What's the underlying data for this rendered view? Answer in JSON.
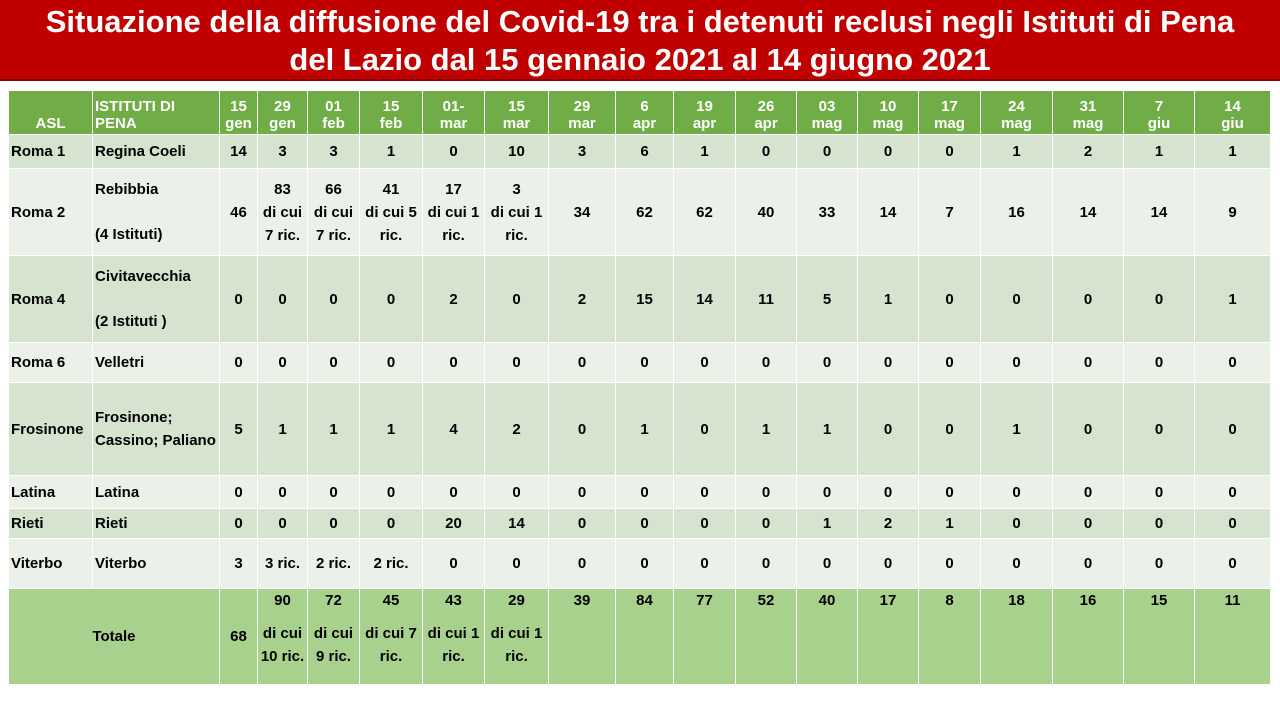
{
  "title": {
    "line1": "Situazione della diffusione del Covid-19 tra i detenuti reclusi negli Istituti di Pena",
    "line2": "del Lazio dal 15 gennaio 2021 al 14 giugno 2021"
  },
  "table": {
    "header": {
      "asl": "ASL",
      "istituti": "ISTITUTI DI PENA",
      "dates": [
        {
          "d": "15",
          "m": "gen"
        },
        {
          "d": "29",
          "m": "gen"
        },
        {
          "d": "01",
          "m": "feb"
        },
        {
          "d": "15",
          "m": "feb"
        },
        {
          "d": "01-",
          "m": "mar"
        },
        {
          "d": "15",
          "m": "mar"
        },
        {
          "d": "29",
          "m": "mar"
        },
        {
          "d": "6",
          "m": "apr"
        },
        {
          "d": "19",
          "m": "apr"
        },
        {
          "d": "26",
          "m": "apr"
        },
        {
          "d": "03",
          "m": "mag"
        },
        {
          "d": "10",
          "m": "mag"
        },
        {
          "d": "17",
          "m": "mag"
        },
        {
          "d": "24",
          "m": "mag"
        },
        {
          "d": "31",
          "m": "mag"
        },
        {
          "d": "7",
          "m": "giu"
        },
        {
          "d": "14",
          "m": "giu"
        }
      ]
    },
    "rows": [
      {
        "asl": "Roma 1",
        "istituto": "Regina Coeli",
        "sub": "",
        "values": [
          "14",
          "3",
          "3",
          "1",
          "0",
          "10",
          "3",
          "6",
          "1",
          "0",
          "0",
          "0",
          "0",
          "1",
          "2",
          "1",
          "1"
        ],
        "notes": [
          "",
          "",
          "",
          "",
          "",
          "",
          "",
          "",
          "",
          "",
          "",
          "",
          "",
          "",
          "",
          "",
          ""
        ]
      },
      {
        "asl": "Roma 2",
        "istituto": "Rebibbia",
        "sub": "(4 Istituti)",
        "values": [
          "46",
          "83",
          "66",
          "41",
          "17",
          "3",
          "34",
          "62",
          "62",
          "40",
          "33",
          "14",
          "7",
          "16",
          "14",
          "14",
          "9"
        ],
        "notes": [
          "",
          "di cui 7 ric.",
          "di cui 7 ric.",
          "di cui 5 ric.",
          "di cui 1 ric.",
          "di cui 1 ric.",
          "",
          "",
          "",
          "",
          "",
          "",
          "",
          "",
          "",
          "",
          ""
        ]
      },
      {
        "asl": "Roma 4",
        "istituto": "Civitavecchia",
        "sub": "(2 Istituti )",
        "values": [
          "0",
          "0",
          "0",
          "0",
          "2",
          "0",
          "2",
          "15",
          "14",
          "11",
          "5",
          "1",
          "0",
          "0",
          "0",
          "0",
          "1"
        ],
        "notes": [
          "",
          "",
          "",
          "",
          "",
          "",
          "",
          "",
          "",
          "",
          "",
          "",
          "",
          "",
          "",
          "",
          ""
        ]
      },
      {
        "asl": "Roma 6",
        "istituto": "Velletri",
        "sub": "",
        "values": [
          "0",
          "0",
          "0",
          "0",
          "0",
          "0",
          "0",
          "0",
          "0",
          "0",
          "0",
          "0",
          "0",
          "0",
          "0",
          "0",
          "0"
        ],
        "notes": [
          "",
          "",
          "",
          "",
          "",
          "",
          "",
          "",
          "",
          "",
          "",
          "",
          "",
          "",
          "",
          "",
          ""
        ]
      },
      {
        "asl": "Frosinone",
        "istituto": "Frosinone; Cassino; Paliano",
        "sub": "",
        "values": [
          "5",
          "1",
          "1",
          "1",
          "4",
          "2",
          "0",
          "1",
          "0",
          "1",
          "1",
          "0",
          "0",
          "1",
          "0",
          "0",
          "0"
        ],
        "notes": [
          "",
          "",
          "",
          "",
          "",
          "",
          "",
          "",
          "",
          "",
          "",
          "",
          "",
          "",
          "",
          "",
          ""
        ]
      },
      {
        "asl": "Latina",
        "istituto": "Latina",
        "sub": "",
        "values": [
          "0",
          "0",
          "0",
          "0",
          "0",
          "0",
          "0",
          "0",
          "0",
          "0",
          "0",
          "0",
          "0",
          "0",
          "0",
          "0",
          "0"
        ],
        "notes": [
          "",
          "",
          "",
          "",
          "",
          "",
          "",
          "",
          "",
          "",
          "",
          "",
          "",
          "",
          "",
          "",
          ""
        ]
      },
      {
        "asl": "Rieti",
        "istituto": "Rieti",
        "sub": "",
        "values": [
          "0",
          "0",
          "0",
          "0",
          "20",
          "14",
          "0",
          "0",
          "0",
          "0",
          "1",
          "2",
          "1",
          "0",
          "0",
          "0",
          "0"
        ],
        "notes": [
          "",
          "",
          "",
          "",
          "",
          "",
          "",
          "",
          "",
          "",
          "",
          "",
          "",
          "",
          "",
          "",
          ""
        ]
      },
      {
        "asl": "Viterbo",
        "istituto": "Viterbo",
        "sub": "",
        "values": [
          "3",
          "3 ric.",
          "2 ric.",
          "2 ric.",
          "0",
          "0",
          "0",
          "0",
          "0",
          "0",
          "0",
          "0",
          "0",
          "0",
          "0",
          "0",
          "0"
        ],
        "notes": [
          "",
          "",
          "",
          "",
          "",
          "",
          "",
          "",
          "",
          "",
          "",
          "",
          "",
          "",
          "",
          "",
          ""
        ]
      }
    ],
    "total": {
      "label": "Totale",
      "values": [
        "68",
        "90",
        "72",
        "45",
        "43",
        "29",
        "39",
        "84",
        "77",
        "52",
        "40",
        "17",
        "8",
        "18",
        "16",
        "15",
        "11"
      ],
      "notes": [
        "",
        "di cui 10 ric.",
        "di cui 9 ric.",
        "di cui 7 ric.",
        "di cui 1 ric.",
        "di cui 1 ric.",
        "",
        "",
        "",
        "",
        "",
        "",
        "",
        "",
        "",
        "",
        ""
      ]
    }
  }
}
